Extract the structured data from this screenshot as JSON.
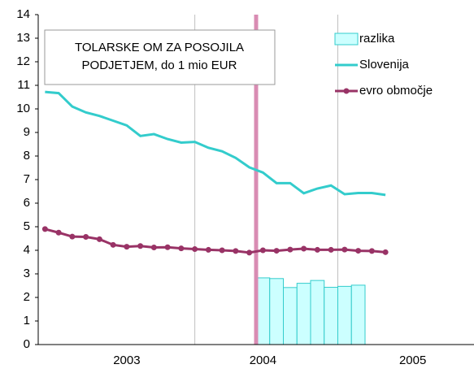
{
  "chart_data": {
    "type": "bar-line",
    "title": [
      "TOLARSKE OM ZA POSOJILA",
      "PODJETJEM, do 1 mio EUR"
    ],
    "categories": [
      null,
      null,
      null,
      null,
      null,
      null,
      "2003",
      null,
      null,
      null,
      null,
      null,
      null,
      null,
      null,
      null,
      "2004",
      null,
      null,
      null,
      null,
      null,
      null,
      null,
      null,
      null,
      null,
      "2005",
      null,
      null,
      null,
      null
    ],
    "series": [
      {
        "name": "razlika",
        "type": "bar",
        "color": "#ccffff",
        "stroke": "#33cccc",
        "values": [
          null,
          null,
          null,
          null,
          null,
          null,
          null,
          null,
          null,
          null,
          null,
          null,
          null,
          null,
          null,
          null,
          2.83,
          2.8,
          2.42,
          2.6,
          2.72,
          2.43,
          2.47,
          2.52,
          null,
          null,
          null,
          null,
          null,
          null,
          null,
          null
        ]
      },
      {
        "name": "Slovenija",
        "type": "line",
        "color": "#33cccc",
        "marker": false,
        "values": [
          10.72,
          10.67,
          10.1,
          9.85,
          9.7,
          9.5,
          9.3,
          8.85,
          8.93,
          8.72,
          8.57,
          8.6,
          8.35,
          8.2,
          7.92,
          7.52,
          7.3,
          6.85,
          6.85,
          6.42,
          6.62,
          6.75,
          6.38,
          6.43,
          6.43,
          6.35,
          null,
          null,
          null,
          null,
          null,
          null
        ]
      },
      {
        "name": "evro območje",
        "type": "line",
        "color": "#993366",
        "marker": true,
        "values": [
          4.9,
          4.75,
          4.58,
          4.57,
          4.47,
          4.23,
          4.15,
          4.18,
          4.12,
          4.13,
          4.08,
          4.05,
          4.02,
          4.0,
          3.97,
          3.9,
          4.0,
          3.98,
          4.03,
          4.07,
          4.02,
          4.02,
          4.03,
          3.98,
          3.97,
          3.92,
          null,
          null,
          null,
          null,
          null,
          null
        ]
      }
    ],
    "ylim": [
      0,
      14
    ],
    "yticks": [
      0,
      1,
      2,
      3,
      4,
      5,
      6,
      7,
      8,
      9,
      10,
      11,
      12,
      13,
      14
    ],
    "xgrid": true
  }
}
